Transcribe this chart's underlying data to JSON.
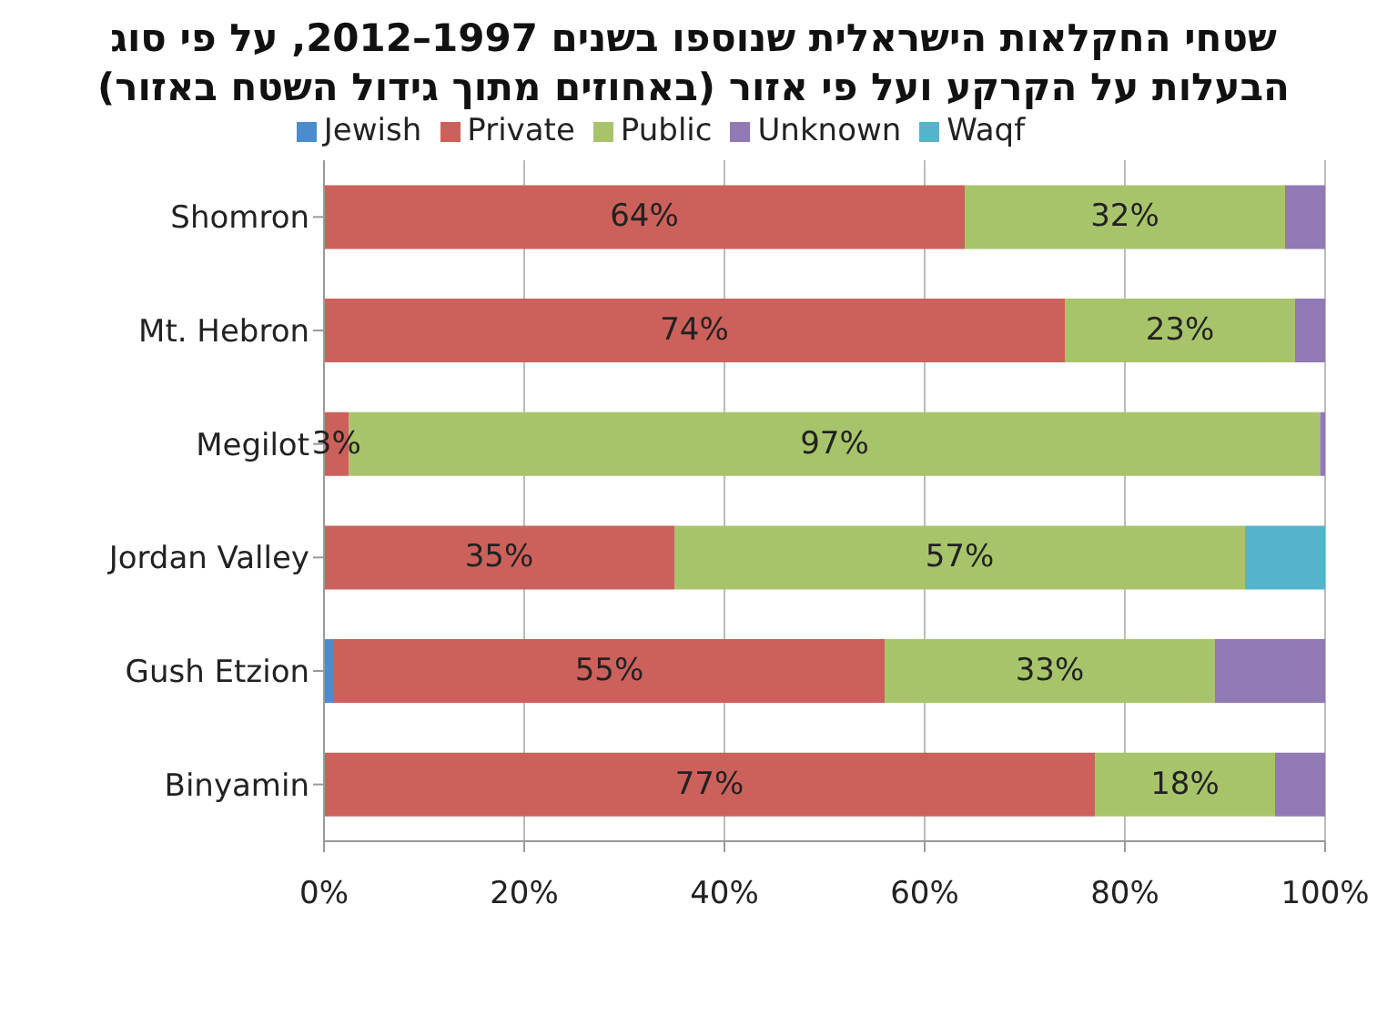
{
  "chart_data": {
    "type": "bar",
    "orientation": "horizontal",
    "stacked": true,
    "title": "שטחי החקלאות הישראלית שנוספו בשנים 1997–2012, על פי סוג הבעלות על הקרקע ועל פי אזור (באחוזים מתוך גידול השטח באזור)",
    "categories": [
      "Shomron",
      "Mt. Hebron",
      "Megilot",
      "Jordan Valley",
      "Gush Etzion",
      "Binyamin"
    ],
    "series": [
      {
        "name": "Jewish",
        "color": "#4a8ccc",
        "values": [
          0,
          0,
          0,
          0,
          1,
          0
        ]
      },
      {
        "name": "Private",
        "color": "#cc615b",
        "values": [
          64,
          74,
          2.5,
          35,
          55,
          77
        ],
        "value_labels": [
          "64%",
          "74%",
          "3%",
          "35%",
          "55%",
          "77%"
        ]
      },
      {
        "name": "Public",
        "color": "#a8c46a",
        "values": [
          32,
          23,
          97,
          57,
          33,
          18
        ],
        "value_labels": [
          "32%",
          "23%",
          "97%",
          "57%",
          "33%",
          "18%"
        ]
      },
      {
        "name": "Unknown",
        "color": "#9079b5",
        "values": [
          4,
          3,
          0.5,
          0,
          11,
          5
        ]
      },
      {
        "name": "Waqf",
        "color": "#55b3cc",
        "values": [
          0,
          0,
          0,
          8,
          0,
          0
        ]
      }
    ],
    "xlim": [
      0,
      100
    ],
    "xticks": [
      {
        "value": 0,
        "label": "0%"
      },
      {
        "value": 20,
        "label": "20%"
      },
      {
        "value": 40,
        "label": "40%"
      },
      {
        "value": 60,
        "label": "60%"
      },
      {
        "value": 80,
        "label": "80%"
      },
      {
        "value": 100,
        "label": "100%"
      }
    ],
    "grid": "x",
    "legend": "top"
  }
}
